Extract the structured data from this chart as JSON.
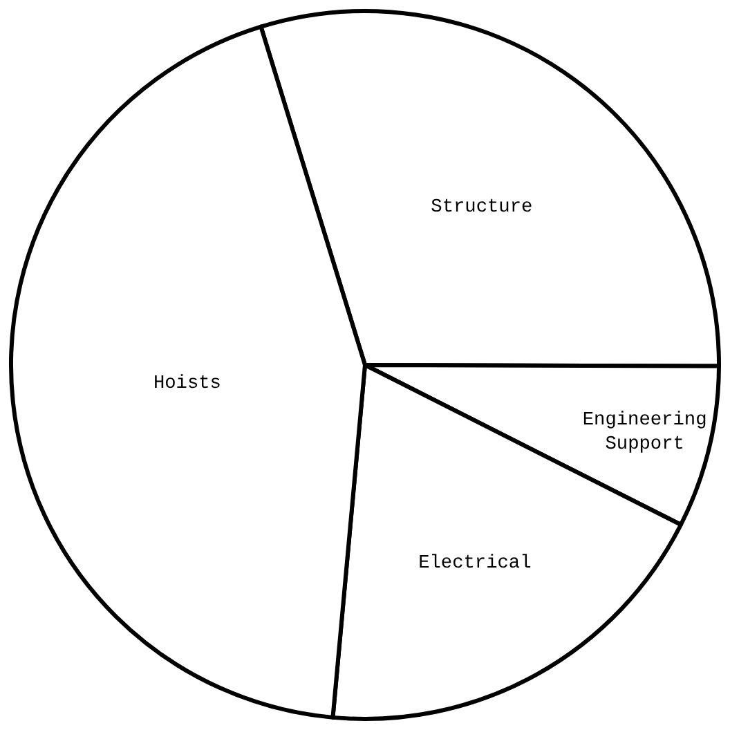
{
  "chart_data": {
    "type": "pie",
    "categories": [
      "Structure",
      "Engineering Support",
      "Electrical",
      "Hoists"
    ],
    "values": [
      29.8,
      7.4,
      19.0,
      43.8
    ],
    "colors": [
      "#ffffff",
      "#ffffff",
      "#ffffff",
      "#ffffff"
    ],
    "legend": false
  }
}
